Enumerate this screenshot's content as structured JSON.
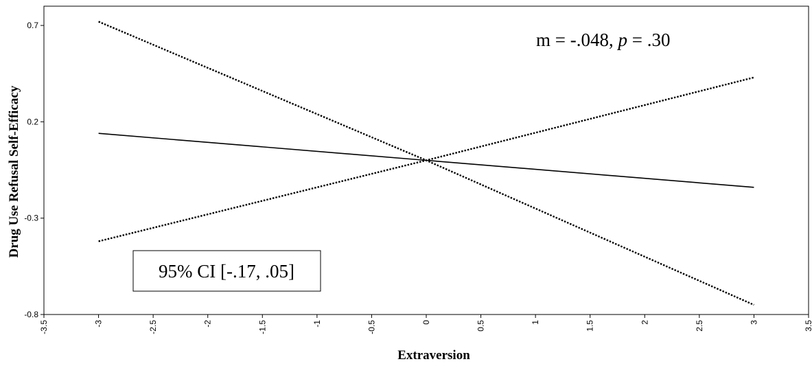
{
  "chart_data": {
    "type": "line",
    "xlabel": "Extraversion",
    "ylabel": "Drug Use Refusal Self-Efficacy",
    "xlim": [
      -3.5,
      3.5
    ],
    "ylim": [
      -0.8,
      0.8
    ],
    "x_ticks": [
      "-3.5",
      "-3",
      "-2.5",
      "-2",
      "-1.5",
      "-1",
      "-0.5",
      "0",
      "0.5",
      "1",
      "1.5",
      "2",
      "2.5",
      "3",
      "3.5"
    ],
    "y_ticks": [
      "0.7",
      "0.2",
      "-0.3",
      "-0.8"
    ],
    "grid": false,
    "series": [
      {
        "style": "solid",
        "x": [
          -3,
          0,
          3
        ],
        "y": [
          0.14,
          0.0,
          -0.14
        ]
      },
      {
        "style": "dotted",
        "x": [
          -3,
          0,
          3
        ],
        "y": [
          0.72,
          0.0,
          -0.75
        ]
      },
      {
        "style": "dotted",
        "x": [
          -3,
          0,
          3
        ],
        "y": [
          -0.42,
          0.0,
          0.43
        ]
      }
    ],
    "annotations": {
      "slope_text_prefix": "m = -.048, ",
      "slope_text_p": "p",
      "slope_text_suffix": " = .30",
      "ci_text": "95% CI [-.17, .05]"
    }
  }
}
